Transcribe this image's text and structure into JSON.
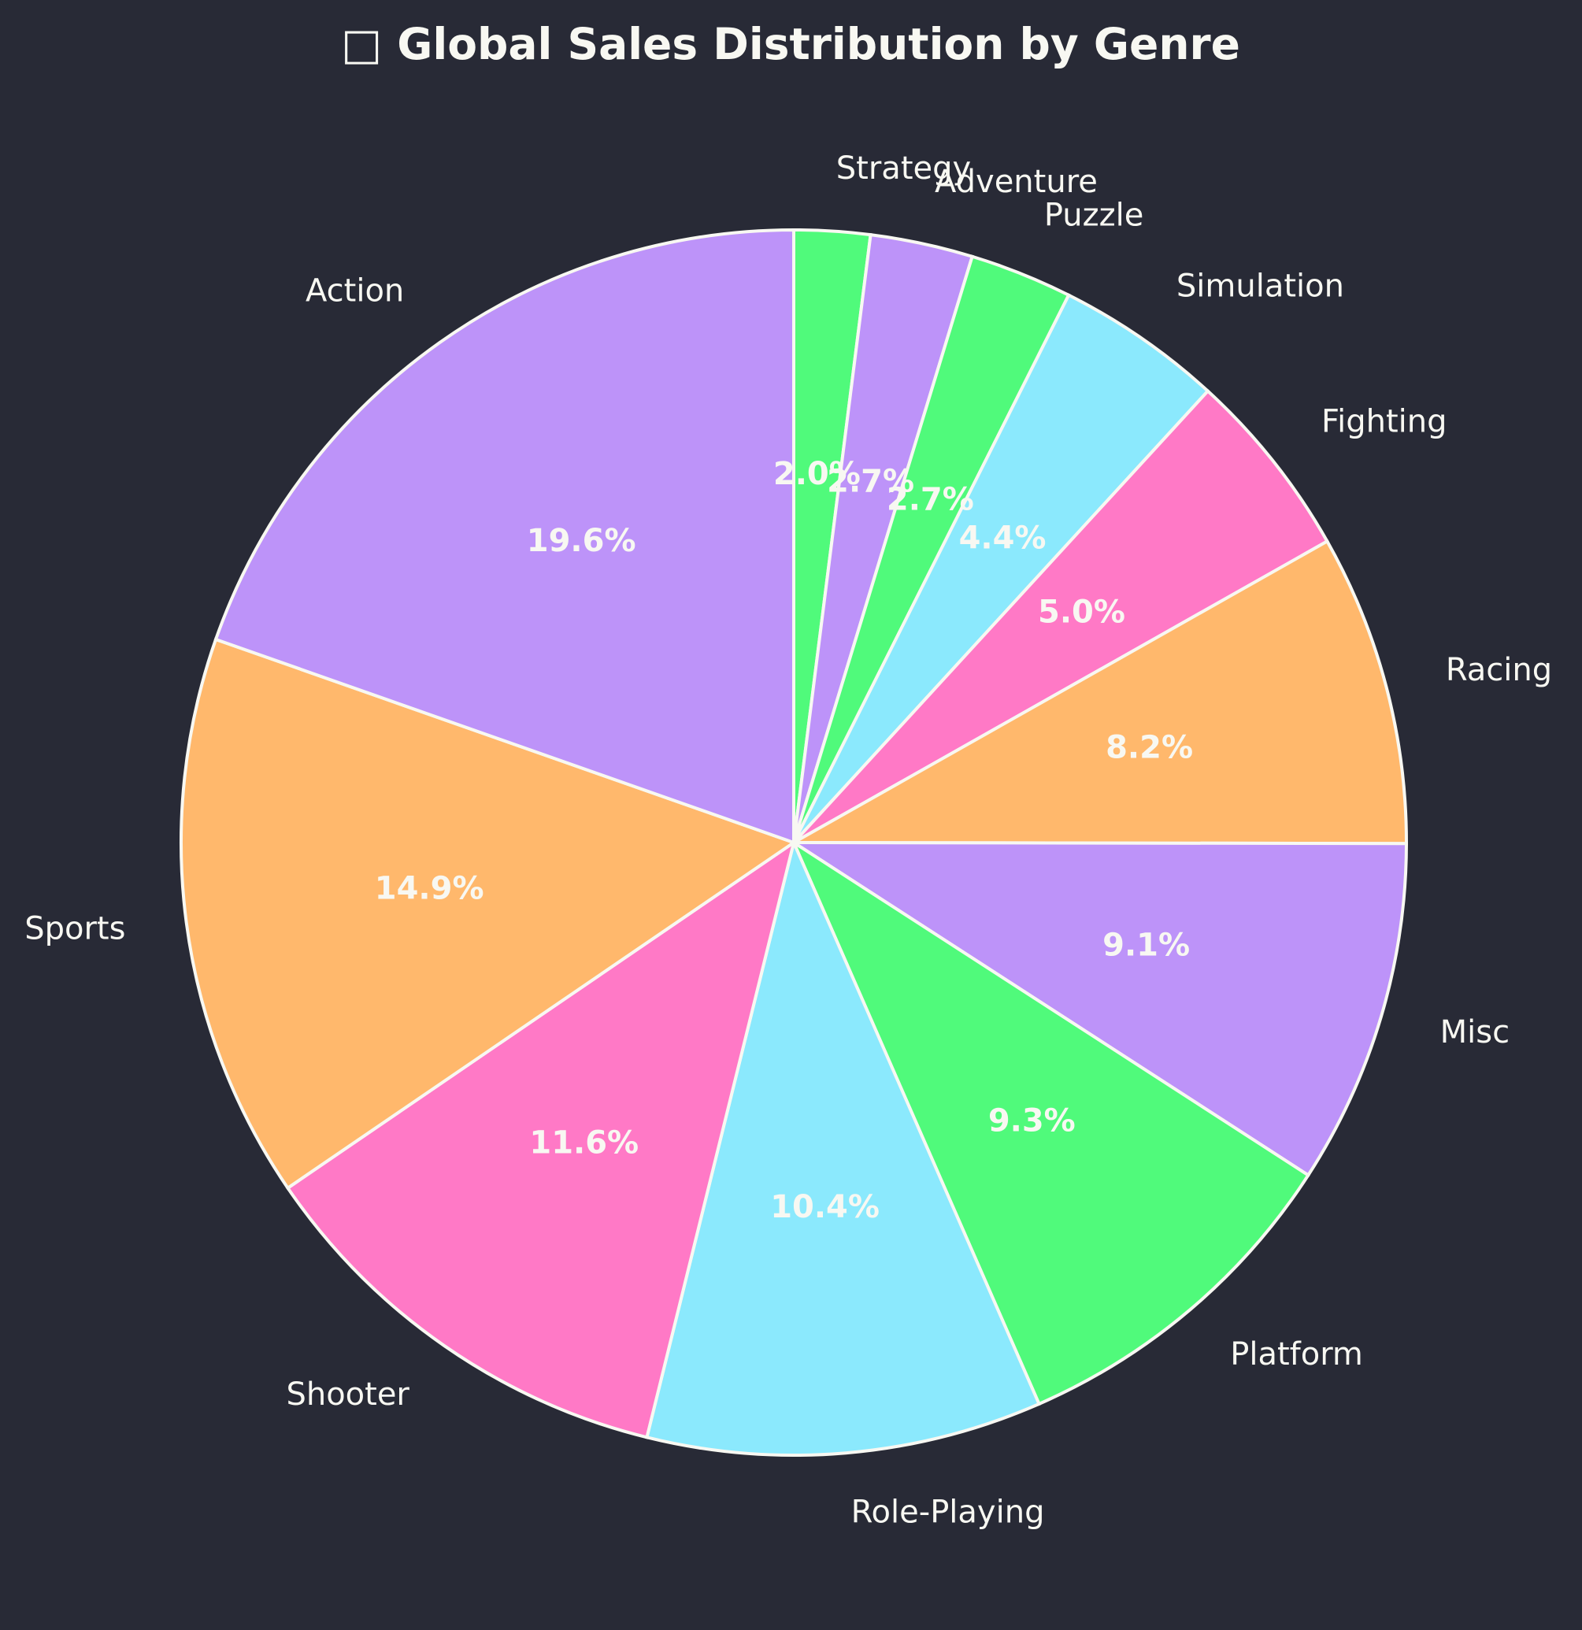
{
  "background": "#282a36",
  "text_color": "#f8f8f2",
  "title_icon": "video-game-controller-icon",
  "chart_data": {
    "type": "pie",
    "title": "Global Sales Distribution by Genre",
    "start": "top, clockwise",
    "slices": [
      {
        "label": "Strategy",
        "value": 2.0,
        "pct_label": "2.0%",
        "color": "#50fa7b"
      },
      {
        "label": "Adventure",
        "value": 2.7,
        "pct_label": "2.7%",
        "color": "#bd93f9"
      },
      {
        "label": "Puzzle",
        "value": 2.7,
        "pct_label": "2.7%",
        "color": "#50fa7b"
      },
      {
        "label": "Simulation",
        "value": 4.4,
        "pct_label": "4.4%",
        "color": "#8be9fd"
      },
      {
        "label": "Fighting",
        "value": 5.0,
        "pct_label": "5.0%",
        "color": "#ff79c6"
      },
      {
        "label": "Racing",
        "value": 8.2,
        "pct_label": "8.2%",
        "color": "#ffb86c"
      },
      {
        "label": "Misc",
        "value": 9.1,
        "pct_label": "9.1%",
        "color": "#bd93f9"
      },
      {
        "label": "Platform",
        "value": 9.3,
        "pct_label": "9.3%",
        "color": "#50fa7b"
      },
      {
        "label": "Role-Playing",
        "value": 10.4,
        "pct_label": "10.4%",
        "color": "#8be9fd"
      },
      {
        "label": "Shooter",
        "value": 11.6,
        "pct_label": "11.6%",
        "color": "#ff79c6"
      },
      {
        "label": "Sports",
        "value": 14.9,
        "pct_label": "14.9%",
        "color": "#ffb86c"
      },
      {
        "label": "Action",
        "value": 19.6,
        "pct_label": "19.6%",
        "color": "#bd93f9"
      }
    ]
  }
}
